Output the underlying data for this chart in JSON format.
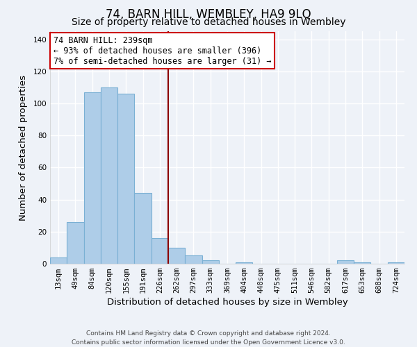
{
  "title": "74, BARN HILL, WEMBLEY, HA9 9LQ",
  "subtitle": "Size of property relative to detached houses in Wembley",
  "xlabel": "Distribution of detached houses by size in Wembley",
  "ylabel": "Number of detached properties",
  "bar_labels": [
    "13sqm",
    "49sqm",
    "84sqm",
    "120sqm",
    "155sqm",
    "191sqm",
    "226sqm",
    "262sqm",
    "297sqm",
    "333sqm",
    "369sqm",
    "404sqm",
    "440sqm",
    "475sqm",
    "511sqm",
    "546sqm",
    "582sqm",
    "617sqm",
    "653sqm",
    "688sqm",
    "724sqm"
  ],
  "bar_values": [
    4,
    26,
    107,
    110,
    106,
    44,
    16,
    10,
    5,
    2,
    0,
    1,
    0,
    0,
    0,
    0,
    0,
    2,
    1,
    0,
    1
  ],
  "bar_color": "#aecde8",
  "bar_edge_color": "#7ab0d4",
  "vline_x": 6.5,
  "vline_color": "#8b0000",
  "ylim": [
    0,
    145
  ],
  "yticks": [
    0,
    20,
    40,
    60,
    80,
    100,
    120,
    140
  ],
  "annotation_title": "74 BARN HILL: 239sqm",
  "annotation_line1": "← 93% of detached houses are smaller (396)",
  "annotation_line2": "7% of semi-detached houses are larger (31) →",
  "annotation_box_color": "#ffffff",
  "annotation_box_edge": "#cc0000",
  "footer_line1": "Contains HM Land Registry data © Crown copyright and database right 2024.",
  "footer_line2": "Contains public sector information licensed under the Open Government Licence v3.0.",
  "background_color": "#eef2f8",
  "grid_color": "#ffffff",
  "title_fontsize": 12,
  "subtitle_fontsize": 10,
  "axis_label_fontsize": 9.5,
  "tick_fontsize": 7.5,
  "footer_fontsize": 6.5,
  "ann_fontsize": 8.5
}
